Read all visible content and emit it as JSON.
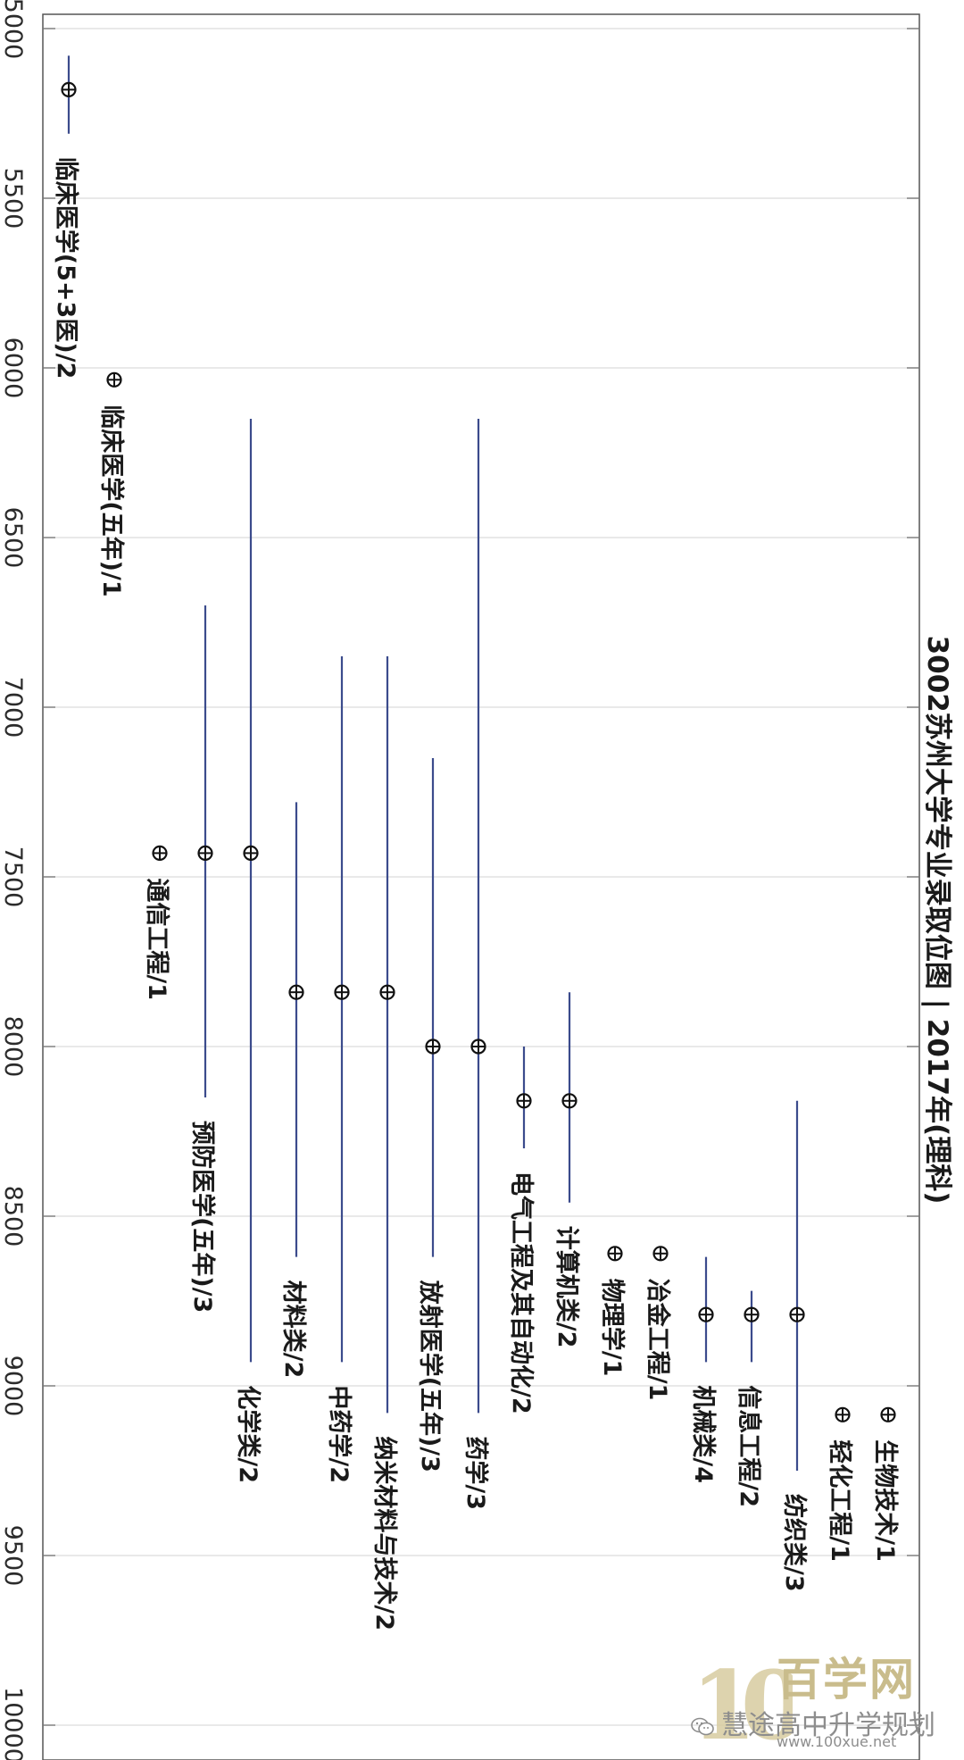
{
  "chart_data": {
    "type": "scatter",
    "orientation": "rotated 90° clockwise (value axis runs top-to-bottom)",
    "title": "3002苏州大学专业录取位图 | 2017年(理科)",
    "axis": {
      "range": [
        5000,
        10000
      ],
      "ticks": [
        5000,
        5500,
        6000,
        6500,
        7000,
        7500,
        8000,
        8500,
        9000,
        9500,
        10000
      ],
      "tick_labels": [
        "5000",
        "5500",
        "6000",
        "6500",
        "7000",
        "7500",
        "8000",
        "8500",
        "9000",
        "9500",
        "10000"
      ],
      "grid": true
    },
    "points": [
      {
        "label": "临床医学(5+3医)/2",
        "value": 5180,
        "min": 5080,
        "max": 5310
      },
      {
        "label": "临床医学(五年)/1",
        "value": 6035
      },
      {
        "label": "通信工程/1",
        "value": 7430
      },
      {
        "label": "预防医学(五年)/3",
        "value": 7430,
        "min": 6700,
        "max": 8150
      },
      {
        "label": "化学类/2",
        "value": 7430,
        "min": 6150,
        "max": 8930
      },
      {
        "label": "材料类/2",
        "value": 7840,
        "min": 7280,
        "max": 8620
      },
      {
        "label": "中药学/2",
        "value": 7840,
        "min": 6850,
        "max": 8930
      },
      {
        "label": "纳米材料与技术/2",
        "value": 7840,
        "min": 6850,
        "max": 9080
      },
      {
        "label": "放射医学(五年)/3",
        "value": 8000,
        "min": 7150,
        "max": 8620
      },
      {
        "label": "药学/3",
        "value": 8000,
        "min": 6150,
        "max": 9080
      },
      {
        "label": "电气工程及其自动化/2",
        "value": 8160,
        "min": 8000,
        "max": 8300
      },
      {
        "label": "计算机类/2",
        "value": 8160,
        "min": 7840,
        "max": 8460
      },
      {
        "label": "物理学/1",
        "value": 8610
      },
      {
        "label": "冶金工程/1",
        "value": 8610
      },
      {
        "label": "机械类/4",
        "value": 8790,
        "min": 8620,
        "max": 8930
      },
      {
        "label": "信息工程/2",
        "value": 8790,
        "min": 8720,
        "max": 8930
      },
      {
        "label": "纺织类/3",
        "value": 8790,
        "min": 8160,
        "max": 9250
      },
      {
        "label": "轻化工程/1",
        "value": 9085
      },
      {
        "label": "生物技术/1",
        "value": 9085
      }
    ]
  },
  "watermark": {
    "brand": "百学网",
    "account": "慧途高中升学规划",
    "url": "www.100xue.net",
    "logo": "100"
  }
}
